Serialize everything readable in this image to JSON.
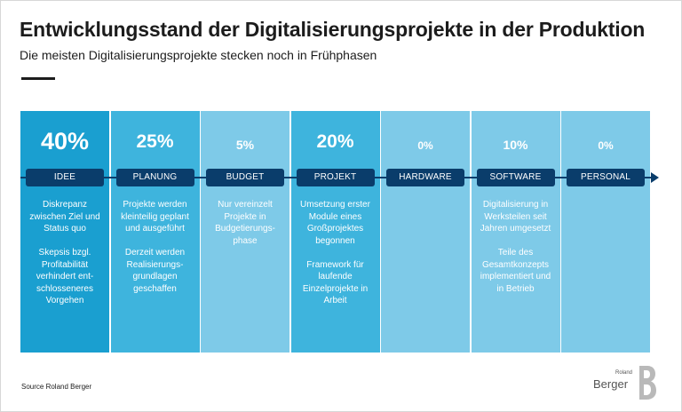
{
  "title": "Entwicklungsstand der Digitalisierungsprojekte in der Produktion",
  "subtitle": "Die meisten Digitalisierungsprojekte stecken noch in Frühphasen",
  "source": "Source Roland Berger",
  "logo": {
    "top_word": "Roland",
    "main_word": "Berger"
  },
  "colors": {
    "dark": "#0a3d6b",
    "strong": "#1a9fd0",
    "medium": "#3eb4dd",
    "light": "#7ecae8"
  },
  "chart_data": {
    "type": "table",
    "title": "Entwicklungsstand der Digitalisierungsprojekte in der Produktion",
    "subtitle": "Die meisten Digitalisierungsprojekte stecken noch in Frühphasen",
    "categories": [
      "IDEE",
      "PLANUNG",
      "BUDGET",
      "PROJEKT",
      "HARDWARE",
      "SOFTWARE",
      "PERSONAL"
    ],
    "percent_labels": [
      "40%",
      "25%",
      "5%",
      "20%",
      "0%",
      "10%",
      "0%"
    ],
    "values": [
      40,
      25,
      5,
      20,
      0,
      10,
      0
    ],
    "descriptions": [
      [
        "Diskrepanz zwischen Ziel und Status quo",
        "Skepsis bzgl. Profitabilität verhindert ent-schlosseneres Vorgehen"
      ],
      [
        "Projekte werden kleinteilig geplant und ausgeführt",
        "Derzeit werden Realisierungs-grundlagen geschaffen"
      ],
      [
        "Nur vereinzelt Projekte in Budgetierungs-phase"
      ],
      [
        "Umsetzung erster Module eines Großprojektes begonnen",
        "Framework für laufende Einzelprojekte in Arbeit"
      ],
      [],
      [
        "Digitalisierung in Werksteilen seit Jahren umgesetzt",
        "Teile des Gesamtkonzepts implementiert und in Betrieb"
      ],
      []
    ]
  }
}
